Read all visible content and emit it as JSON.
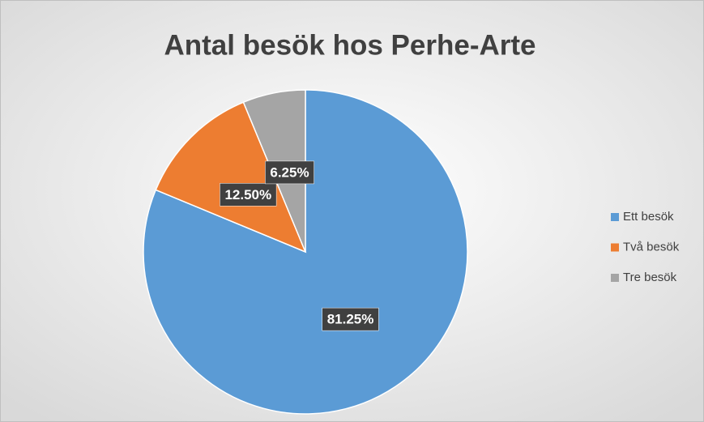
{
  "chart_data": {
    "type": "pie",
    "title": "Antal besök hos Perhe-Arte",
    "categories": [
      "Ett besök",
      "Två besök",
      "Tre besök"
    ],
    "values": [
      81.25,
      12.5,
      6.25
    ],
    "value_labels": [
      "81.25%",
      "12.50%",
      "6.25%"
    ],
    "colors": [
      "#5b9bd5",
      "#ed7d31",
      "#a5a5a5"
    ],
    "legend": "right"
  }
}
